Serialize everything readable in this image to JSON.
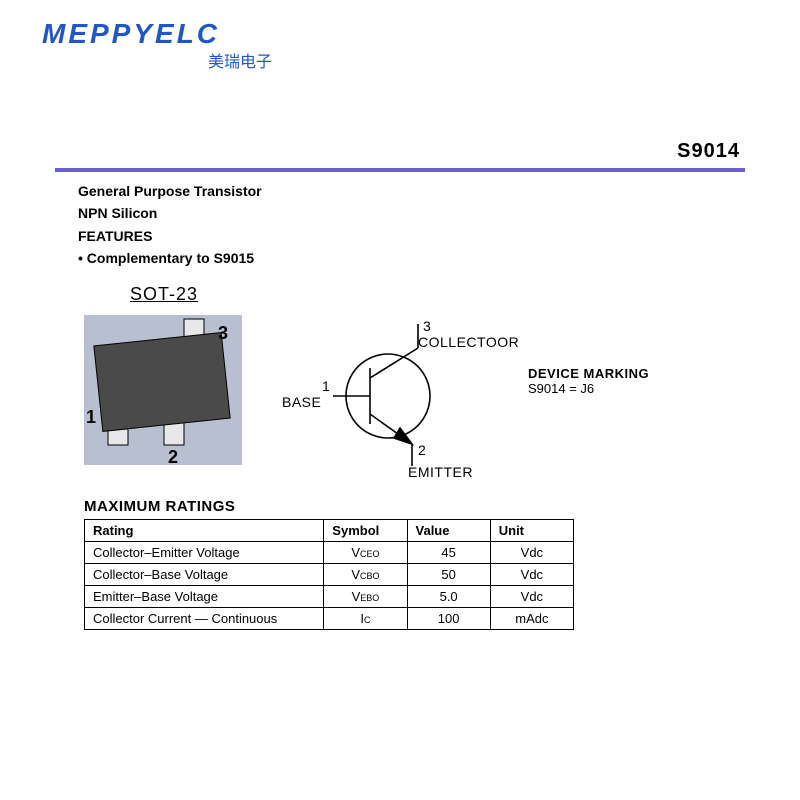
{
  "logo": {
    "brand": "MEPPYELC",
    "sub": "美瑞电子"
  },
  "part_number": "S9014",
  "features": {
    "line1": "General Purpose Transistor",
    "line2": "NPN Silicon",
    "line3": "FEATURES",
    "line4": "• Complementary to S9015"
  },
  "package": {
    "label": "SOT-23",
    "pin1": "1",
    "pin2": "2",
    "pin3": "3",
    "body_color": "#4a4a4a",
    "bg_color": "#b8bfd0"
  },
  "symbol": {
    "pin1_num": "1",
    "pin1_name": "BASE",
    "pin2_num": "2",
    "pin2_name": "EMITTER",
    "pin3_num": "3",
    "pin3_name": "COLLECTOOR",
    "stroke": "#000000"
  },
  "marking": {
    "title": "DEVICE MARKING",
    "text": "S9014 = J6"
  },
  "ratings": {
    "title": "MAXIMUM RATINGS",
    "columns": [
      "Rating",
      "Symbol",
      "Value",
      "Unit"
    ],
    "col_widths": [
      "230px",
      "80px",
      "80px",
      "80px"
    ],
    "rows": [
      {
        "rating": "Collector–Emitter Voltage",
        "sym_main": "V",
        "sym_sub": "CEO",
        "value": "45",
        "unit": "Vdc"
      },
      {
        "rating": "Collector–Base Voltage",
        "sym_main": "V",
        "sym_sub": "CBO",
        "value": "50",
        "unit": "Vdc"
      },
      {
        "rating": "Emitter–Base Voltage",
        "sym_main": "V",
        "sym_sub": "EBO",
        "value": "5.0",
        "unit": "Vdc"
      },
      {
        "rating": "Collector Current — Continuous",
        "sym_main": "I",
        "sym_sub": "C",
        "value": "100",
        "unit": "mAdc"
      }
    ]
  },
  "colors": {
    "brand": "#2056c6",
    "divider": "#6a5fd4",
    "text": "#000000",
    "bg": "#ffffff"
  }
}
